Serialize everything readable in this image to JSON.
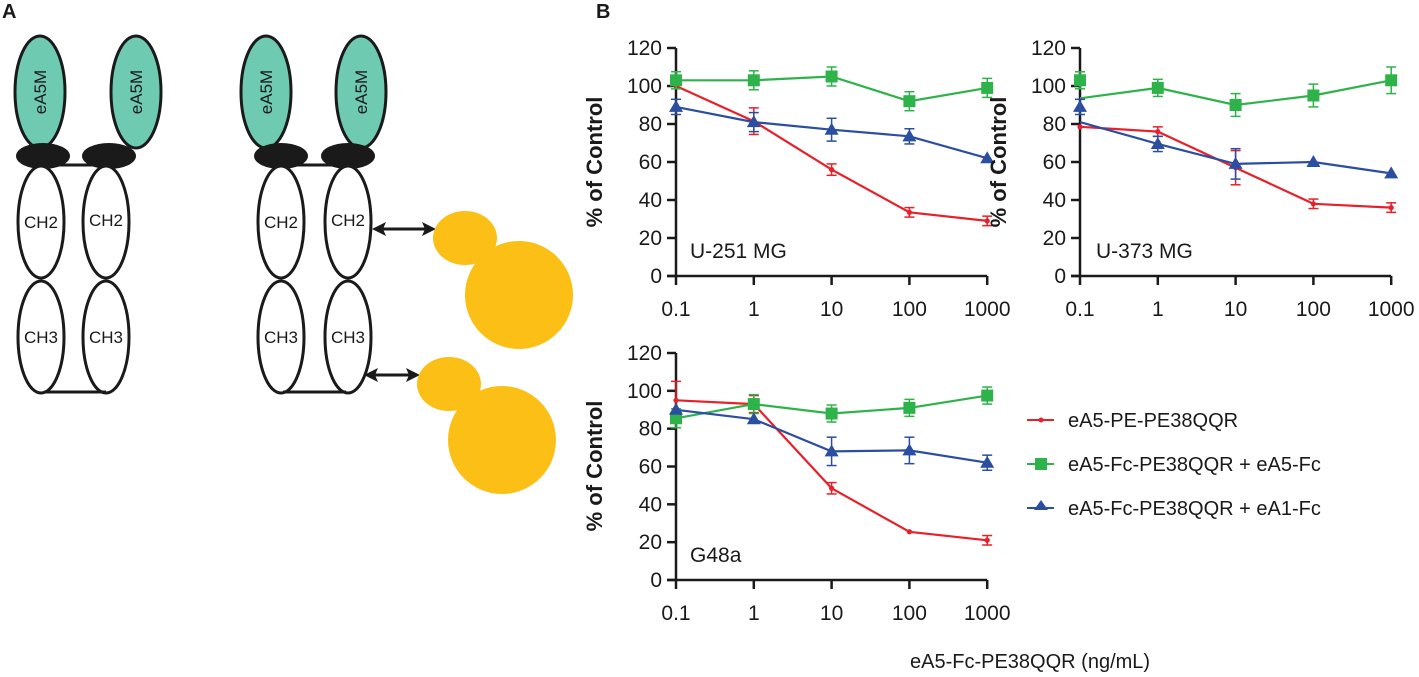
{
  "panel_labels": {
    "a": "A",
    "b": "B"
  },
  "diagram": {
    "colors": {
      "vl_domain": "#6fcab2",
      "hinge": "#1a1a1a",
      "toxin": "#fbbf15"
    },
    "left_construct": {
      "vl_labels": [
        "eA5M",
        "eA5M"
      ],
      "ch2_labels": [
        "CH2",
        "CH2"
      ],
      "ch3_labels": [
        "CH3",
        "CH3"
      ]
    },
    "right_construct": {
      "vl_labels": [
        "eA5M",
        "eA5M"
      ],
      "ch2_labels": [
        "CH2",
        "CH2"
      ],
      "ch3_labels": [
        "CH3",
        "CH3"
      ]
    }
  },
  "chart_data": [
    {
      "type": "line",
      "title": "U-251 MG",
      "xscale": "log",
      "x": [
        0.1,
        1,
        10,
        100,
        1000
      ],
      "xtick_labels": [
        "0.1",
        "1",
        "10",
        "100",
        "1000"
      ],
      "ylabel": "% of Control",
      "yticks": [
        0,
        20,
        40,
        60,
        80,
        100,
        120
      ],
      "ylim": [
        0,
        120
      ],
      "series": [
        {
          "name": "eA5-PE-PE38QQR",
          "color": "#e8202a",
          "marker": "dot",
          "values": [
            100,
            81.5,
            56,
            33.5,
            29
          ],
          "errors": [
            0,
            7,
            3,
            2.5,
            2.5
          ]
        },
        {
          "name": "eA5-Fc-PE38QQR + eA5-Fc",
          "color": "#2db34a",
          "marker": "square",
          "values": [
            103,
            103,
            105,
            92,
            99
          ],
          "errors": [
            4.5,
            5,
            5,
            5,
            5
          ]
        },
        {
          "name": "eA5-Fc-PE38QQR + eA1-Fc",
          "color": "#2b4ea0",
          "marker": "triangle",
          "values": [
            89,
            81,
            77,
            73.5,
            62
          ],
          "errors": [
            4,
            5,
            6,
            4,
            0
          ]
        }
      ]
    },
    {
      "type": "line",
      "title": "U-373 MG",
      "xscale": "log",
      "x": [
        0.1,
        1,
        10,
        100,
        1000
      ],
      "xtick_labels": [
        "0.1",
        "1",
        "10",
        "100",
        "1000"
      ],
      "ylabel": "% of Control",
      "yticks": [
        0,
        20,
        40,
        60,
        80,
        100,
        120
      ],
      "ylim": [
        0,
        120
      ],
      "series": [
        {
          "name": "eA5-PE-PE38QQR",
          "color": "#e8202a",
          "marker": "dot",
          "values": [
            78.5,
            76,
            57,
            38,
            36
          ],
          "errors": [
            0,
            2.5,
            9,
            2.5,
            2.5
          ]
        },
        {
          "name": "eA5-Fc-PE38QQR + eA5-Fc",
          "color": "#2db34a",
          "marker": "square",
          "values": [
            103,
            99,
            90,
            95,
            103
          ],
          "errors": [
            4.5,
            4.5,
            6,
            6,
            7
          ],
          "line_start_value": 93.5
        },
        {
          "name": "eA5-Fc-PE38QQR + eA1-Fc",
          "color": "#2b4ea0",
          "marker": "triangle",
          "values": [
            89,
            69.5,
            59,
            60,
            54
          ],
          "errors": [
            4,
            4,
            8,
            0,
            0
          ],
          "line_start_value": 81
        }
      ]
    },
    {
      "type": "line",
      "title": "G48a",
      "xscale": "log",
      "x": [
        0.1,
        1,
        10,
        100,
        1000
      ],
      "xtick_labels": [
        "0.1",
        "1",
        "10",
        "100",
        "1000"
      ],
      "ylabel": "% of Control",
      "yticks": [
        0,
        20,
        40,
        60,
        80,
        100,
        120
      ],
      "ylim": [
        0,
        120
      ],
      "series": [
        {
          "name": "eA5-PE-PE38QQR",
          "color": "#e8202a",
          "marker": "dot",
          "values": [
            95,
            93,
            48.5,
            25.5,
            21
          ],
          "errors": [
            10,
            4.5,
            3,
            0,
            2.5
          ]
        },
        {
          "name": "eA5-Fc-PE38QQR + eA5-Fc",
          "color": "#2db34a",
          "marker": "square",
          "values": [
            85.5,
            93,
            88,
            91,
            97.5
          ],
          "errors": [
            5,
            5,
            4.5,
            4.5,
            4.5
          ]
        },
        {
          "name": "eA5-Fc-PE38QQR + eA1-Fc",
          "color": "#2b4ea0",
          "marker": "triangle",
          "values": [
            90,
            85,
            68,
            68.5,
            62
          ],
          "errors": [
            0,
            0,
            7.5,
            7,
            4
          ]
        }
      ]
    }
  ],
  "legend": {
    "placement": "right of bottom chart",
    "items": [
      {
        "label": "eA5-PE-PE38QQR",
        "color": "#e8202a",
        "marker": "dot"
      },
      {
        "label": "eA5-Fc-PE38QQR + eA5-Fc",
        "color": "#2db34a",
        "marker": "square"
      },
      {
        "label": "eA5-Fc-PE38QQR + eA1-Fc",
        "color": "#2b4ea0",
        "marker": "triangle"
      }
    ]
  },
  "shared_xlabel": "eA5-Fc-PE38QQR (ng/mL)"
}
